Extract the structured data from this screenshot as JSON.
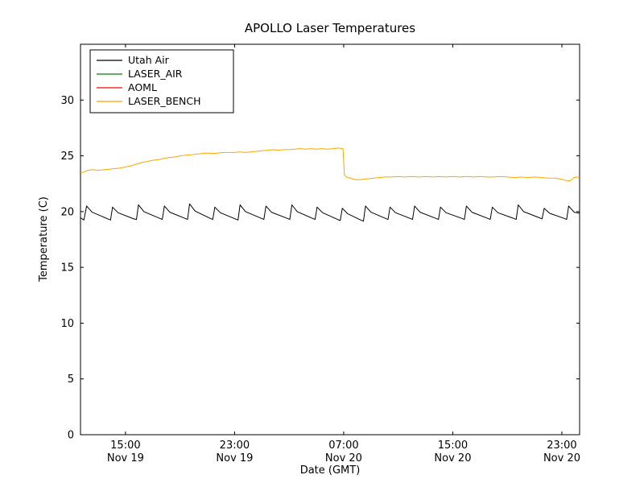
{
  "figure": {
    "title": "APOLLO Laser Temperatures",
    "xlabel": "Date (GMT)",
    "ylabel": "Temperature (C)"
  },
  "chart_data": {
    "type": "line",
    "title": "APOLLO Laser Temperatures",
    "xlabel": "Date (GMT)",
    "ylabel": "Temperature (C)",
    "x_unit": "hours since Nov 19 00:00 GMT",
    "xlim": [
      11.7,
      48.3
    ],
    "ylim": [
      0,
      35
    ],
    "grid": false,
    "legend_position": "upper left",
    "yticks": [
      0,
      5,
      10,
      15,
      20,
      25,
      30
    ],
    "xticks": [
      {
        "x": 15,
        "time": "15:00",
        "date": "Nov 19"
      },
      {
        "x": 23,
        "time": "23:00",
        "date": "Nov 19"
      },
      {
        "x": 31,
        "time": "07:00",
        "date": "Nov 20"
      },
      {
        "x": 39,
        "time": "15:00",
        "date": "Nov 20"
      },
      {
        "x": 47,
        "time": "23:00",
        "date": "Nov 20"
      }
    ],
    "series": [
      {
        "name": "Utah Air",
        "color": "#000000",
        "points": [
          [
            11.7,
            19.45
          ],
          [
            11.95,
            19.25
          ],
          [
            12.15,
            20.5
          ],
          [
            12.55,
            19.95
          ],
          [
            13.7,
            19.35
          ],
          [
            13.9,
            19.25
          ],
          [
            14.05,
            20.4
          ],
          [
            14.45,
            19.9
          ],
          [
            15.6,
            19.35
          ],
          [
            15.8,
            19.3
          ],
          [
            15.95,
            20.6
          ],
          [
            16.35,
            20.0
          ],
          [
            17.5,
            19.4
          ],
          [
            17.7,
            19.3
          ],
          [
            17.85,
            20.5
          ],
          [
            18.25,
            19.95
          ],
          [
            19.35,
            19.4
          ],
          [
            19.55,
            19.3
          ],
          [
            19.7,
            20.7
          ],
          [
            20.1,
            20.05
          ],
          [
            21.2,
            19.4
          ],
          [
            21.4,
            19.3
          ],
          [
            21.55,
            20.4
          ],
          [
            21.95,
            19.9
          ],
          [
            23.05,
            19.35
          ],
          [
            23.25,
            19.25
          ],
          [
            23.4,
            20.6
          ],
          [
            23.8,
            20.0
          ],
          [
            24.95,
            19.4
          ],
          [
            25.15,
            19.3
          ],
          [
            25.3,
            20.5
          ],
          [
            25.7,
            19.95
          ],
          [
            26.85,
            19.4
          ],
          [
            27.05,
            19.3
          ],
          [
            27.2,
            20.6
          ],
          [
            27.6,
            20.0
          ],
          [
            28.7,
            19.4
          ],
          [
            28.9,
            19.3
          ],
          [
            29.05,
            20.4
          ],
          [
            29.45,
            19.9
          ],
          [
            30.55,
            19.3
          ],
          [
            30.75,
            19.2
          ],
          [
            30.9,
            20.3
          ],
          [
            31.3,
            19.8
          ],
          [
            32.25,
            19.25
          ],
          [
            32.45,
            19.15
          ],
          [
            32.6,
            20.5
          ],
          [
            33.0,
            19.95
          ],
          [
            34.05,
            19.4
          ],
          [
            34.25,
            19.3
          ],
          [
            34.4,
            20.4
          ],
          [
            34.8,
            19.9
          ],
          [
            35.85,
            19.4
          ],
          [
            36.05,
            19.3
          ],
          [
            36.2,
            20.5
          ],
          [
            36.6,
            19.95
          ],
          [
            37.75,
            19.4
          ],
          [
            37.95,
            19.3
          ],
          [
            38.1,
            20.4
          ],
          [
            38.5,
            19.9
          ],
          [
            39.65,
            19.4
          ],
          [
            39.85,
            19.3
          ],
          [
            40.0,
            20.5
          ],
          [
            40.4,
            19.95
          ],
          [
            41.55,
            19.4
          ],
          [
            41.75,
            19.3
          ],
          [
            41.9,
            20.4
          ],
          [
            42.3,
            19.9
          ],
          [
            43.45,
            19.4
          ],
          [
            43.65,
            19.3
          ],
          [
            43.8,
            20.6
          ],
          [
            44.2,
            20.0
          ],
          [
            45.35,
            19.45
          ],
          [
            45.55,
            19.35
          ],
          [
            45.7,
            20.3
          ],
          [
            46.1,
            19.85
          ],
          [
            47.15,
            19.4
          ],
          [
            47.35,
            19.3
          ],
          [
            47.5,
            20.5
          ],
          [
            47.9,
            19.95
          ],
          [
            48.3,
            19.85
          ]
        ]
      },
      {
        "name": "LASER_AIR",
        "color": "#008000",
        "points": []
      },
      {
        "name": "AOML",
        "color": "#ff0000",
        "points": []
      },
      {
        "name": "LASER_BENCH",
        "color": "#ffa500",
        "points": [
          [
            11.7,
            23.5
          ],
          [
            12.0,
            23.55
          ],
          [
            12.2,
            23.7
          ],
          [
            12.6,
            23.75
          ],
          [
            13.0,
            23.7
          ],
          [
            13.4,
            23.75
          ],
          [
            13.8,
            23.8
          ],
          [
            14.2,
            23.85
          ],
          [
            14.6,
            23.9
          ],
          [
            15.0,
            24.0
          ],
          [
            15.4,
            24.1
          ],
          [
            15.8,
            24.25
          ],
          [
            16.2,
            24.4
          ],
          [
            16.6,
            24.5
          ],
          [
            17.0,
            24.6
          ],
          [
            17.4,
            24.65
          ],
          [
            17.8,
            24.75
          ],
          [
            18.2,
            24.85
          ],
          [
            18.6,
            24.9
          ],
          [
            19.0,
            25.0
          ],
          [
            19.4,
            25.05
          ],
          [
            19.8,
            25.1
          ],
          [
            20.2,
            25.15
          ],
          [
            20.6,
            25.2
          ],
          [
            21.0,
            25.25
          ],
          [
            21.4,
            25.2
          ],
          [
            21.8,
            25.25
          ],
          [
            22.2,
            25.3
          ],
          [
            22.6,
            25.3
          ],
          [
            23.0,
            25.3
          ],
          [
            23.4,
            25.35
          ],
          [
            23.8,
            25.3
          ],
          [
            24.2,
            25.35
          ],
          [
            24.6,
            25.4
          ],
          [
            25.0,
            25.45
          ],
          [
            25.4,
            25.5
          ],
          [
            25.8,
            25.55
          ],
          [
            26.2,
            25.5
          ],
          [
            26.6,
            25.55
          ],
          [
            27.0,
            25.55
          ],
          [
            27.4,
            25.6
          ],
          [
            27.8,
            25.65
          ],
          [
            28.2,
            25.6
          ],
          [
            28.6,
            25.65
          ],
          [
            29.0,
            25.6
          ],
          [
            29.4,
            25.65
          ],
          [
            29.8,
            25.6
          ],
          [
            30.2,
            25.65
          ],
          [
            30.6,
            25.7
          ],
          [
            30.95,
            25.65
          ],
          [
            31.05,
            23.3
          ],
          [
            31.2,
            23.1
          ],
          [
            31.6,
            22.95
          ],
          [
            32.0,
            22.85
          ],
          [
            32.4,
            22.9
          ],
          [
            32.8,
            22.95
          ],
          [
            33.2,
            23.0
          ],
          [
            33.6,
            23.05
          ],
          [
            34.0,
            23.1
          ],
          [
            34.5,
            23.1
          ],
          [
            35.0,
            23.15
          ],
          [
            35.5,
            23.1
          ],
          [
            36.0,
            23.15
          ],
          [
            36.5,
            23.1
          ],
          [
            37.0,
            23.15
          ],
          [
            37.5,
            23.1
          ],
          [
            38.0,
            23.15
          ],
          [
            38.5,
            23.1
          ],
          [
            39.0,
            23.15
          ],
          [
            39.5,
            23.1
          ],
          [
            40.0,
            23.15
          ],
          [
            40.5,
            23.1
          ],
          [
            41.0,
            23.15
          ],
          [
            41.5,
            23.1
          ],
          [
            42.0,
            23.1
          ],
          [
            42.5,
            23.15
          ],
          [
            43.0,
            23.1
          ],
          [
            43.5,
            23.05
          ],
          [
            44.0,
            23.1
          ],
          [
            44.5,
            23.05
          ],
          [
            45.0,
            23.1
          ],
          [
            45.5,
            23.05
          ],
          [
            46.0,
            23.0
          ],
          [
            46.5,
            23.0
          ],
          [
            47.0,
            22.9
          ],
          [
            47.3,
            22.8
          ],
          [
            47.6,
            22.75
          ],
          [
            47.9,
            23.05
          ],
          [
            48.1,
            23.1
          ],
          [
            48.3,
            23.05
          ]
        ]
      }
    ]
  }
}
